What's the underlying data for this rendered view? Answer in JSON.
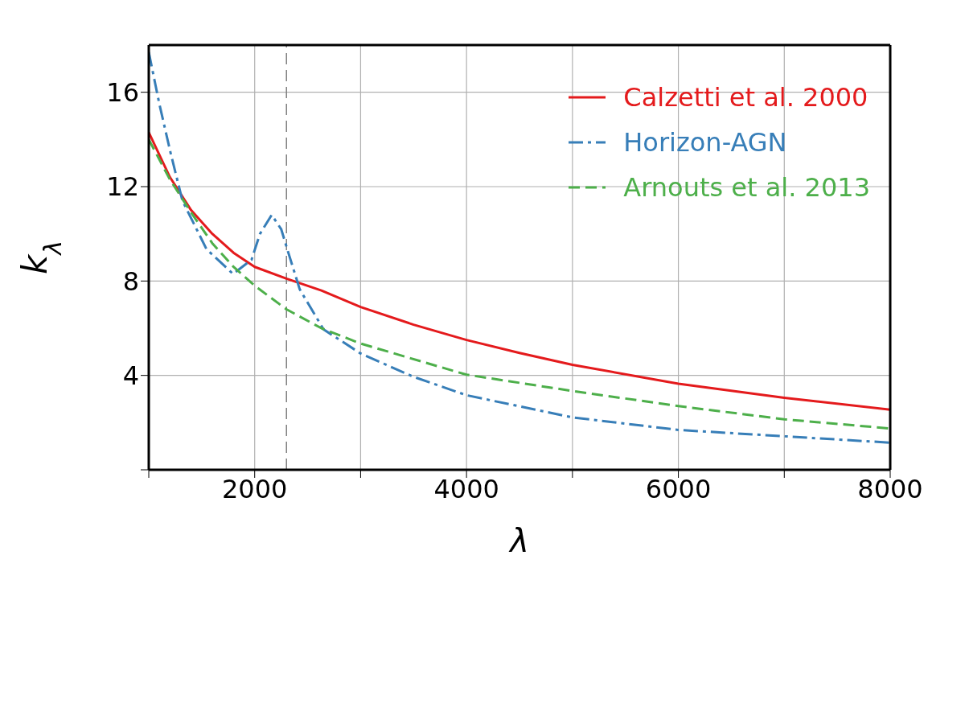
{
  "chart_data": {
    "type": "line",
    "xlabel": "λ",
    "ylabel": "k$_{λ}$",
    "xlim": [
      1000,
      8000
    ],
    "ylim": [
      0,
      18
    ],
    "xticks": [
      {
        "value": 1000,
        "label": null
      },
      2000,
      {
        "value": 3000,
        "label": null
      },
      4000,
      {
        "value": 5000,
        "label": null
      },
      6000,
      {
        "value": 7000,
        "label": null
      },
      8000
    ],
    "yticks": [
      {
        "value": 0,
        "label": null
      },
      4,
      8,
      12,
      16
    ],
    "grid": true,
    "legend": "top right",
    "marker": "none",
    "ref_lines": [
      {
        "axis": "x",
        "value": 2300,
        "color": "#808080",
        "line_style": "dashed"
      }
    ],
    "series": [
      {
        "name": "Calzetti et al. 2000",
        "color": "#e41a1c",
        "line_style": "solid",
        "x": [
          1000,
          1200,
          1400,
          1600,
          1800,
          2000,
          2300,
          2630,
          3000,
          3500,
          4000,
          4500,
          5000,
          6000,
          7000,
          8000
        ],
        "values": [
          14.3,
          12.4,
          11.0,
          10.0,
          9.2,
          8.6,
          8.1,
          7.6,
          6.9,
          6.15,
          5.5,
          4.95,
          4.45,
          3.65,
          3.05,
          2.55
        ]
      },
      {
        "name": "Horizon-AGN",
        "color": "#377eb8",
        "line_style": "dashdot",
        "x": [
          1000,
          1100,
          1205,
          1318,
          1545,
          1796,
          1970,
          2050,
          2160,
          2250,
          2304,
          2425,
          2650,
          3000,
          3500,
          4000,
          5000,
          6000,
          7000,
          8000
        ],
        "values": [
          17.7,
          15.5,
          13.45,
          11.4,
          9.35,
          8.3,
          8.9,
          10.0,
          10.8,
          10.2,
          9.4,
          7.65,
          5.95,
          4.93,
          3.94,
          3.16,
          2.22,
          1.69,
          1.42,
          1.15
        ]
      },
      {
        "name": "Arnouts et al. 2013",
        "color": "#4daf4a",
        "line_style": "dashed",
        "x": [
          1000,
          1200,
          1400,
          1600,
          1800,
          2000,
          2300,
          2630,
          3000,
          4000,
          5000,
          6000,
          7000,
          8000
        ],
        "values": [
          14.0,
          12.3,
          10.9,
          9.6,
          8.6,
          7.8,
          6.8,
          6.0,
          5.35,
          4.03,
          3.34,
          2.7,
          2.14,
          1.75
        ]
      }
    ]
  }
}
